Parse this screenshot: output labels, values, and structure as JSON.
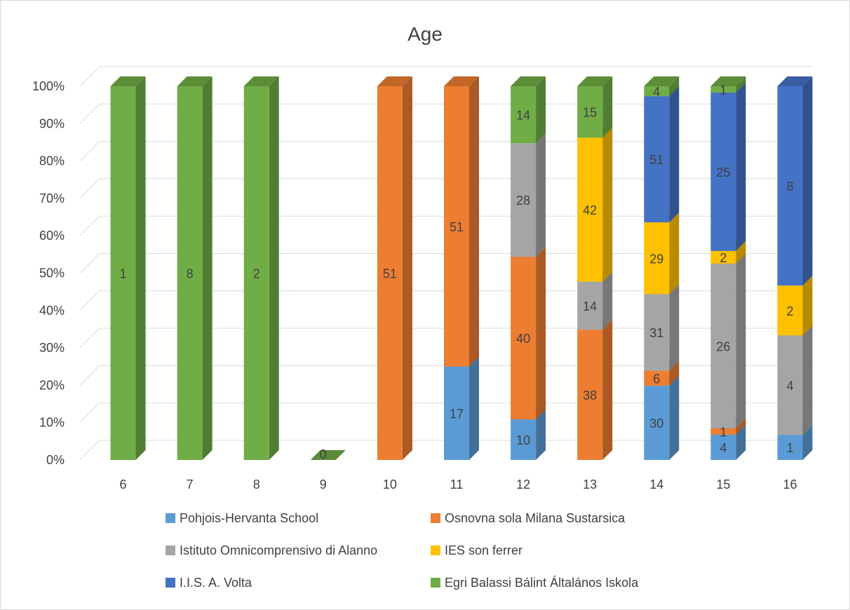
{
  "chart_data": {
    "type": "bar",
    "stacked": "percent",
    "title": "Age",
    "xlabel": "",
    "ylabel": "",
    "ylim": [
      0,
      100
    ],
    "y_ticks": [
      "0%",
      "10%",
      "20%",
      "30%",
      "40%",
      "50%",
      "60%",
      "70%",
      "80%",
      "90%",
      "100%"
    ],
    "categories": [
      "6",
      "7",
      "8",
      "9",
      "10",
      "11",
      "12",
      "13",
      "14",
      "15",
      "16"
    ],
    "grid": true,
    "legend_position": "bottom",
    "series": [
      {
        "name": "Pohjois-Hervanta School",
        "color": "#5b9bd5",
        "values": [
          0,
          0,
          0,
          0,
          0,
          17,
          10,
          0,
          30,
          4,
          1
        ]
      },
      {
        "name": "Osnovna sola Milana Sustarsica",
        "color": "#ed7d31",
        "values": [
          0,
          0,
          0,
          0,
          51,
          51,
          40,
          38,
          6,
          1,
          0
        ]
      },
      {
        "name": "Istituto Omnicomprensivo di Alanno",
        "color": "#a5a5a5",
        "values": [
          0,
          0,
          0,
          0,
          0,
          0,
          28,
          14,
          31,
          26,
          4
        ]
      },
      {
        "name": "IES son ferrer",
        "color": "#ffc000",
        "values": [
          0,
          0,
          0,
          0,
          0,
          0,
          0,
          42,
          29,
          2,
          2
        ]
      },
      {
        "name": "I.I.S. A. Volta",
        "color": "#4472c4",
        "values": [
          0,
          0,
          0,
          0,
          0,
          0,
          0,
          0,
          51,
          25,
          8
        ]
      },
      {
        "name": "Egri Balassi Bálint Általános Iskola",
        "color": "#70ad47",
        "values": [
          1,
          8,
          2,
          0,
          0,
          0,
          14,
          15,
          4,
          1,
          0
        ]
      }
    ]
  }
}
